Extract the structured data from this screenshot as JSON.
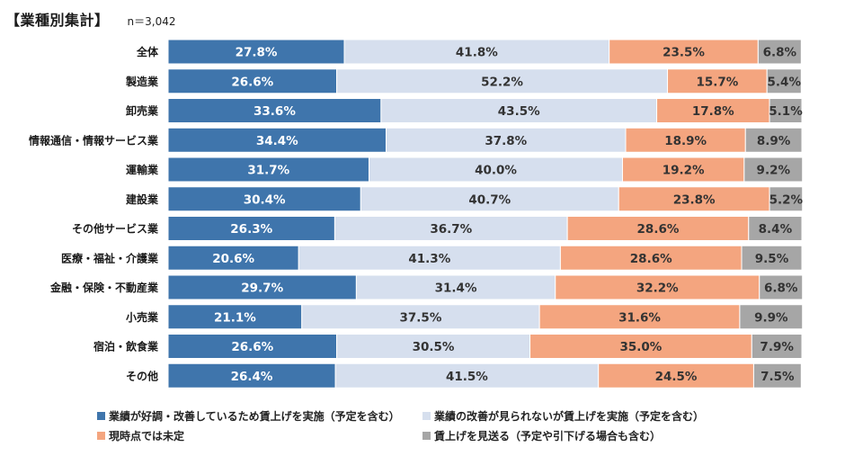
{
  "header": {
    "title": "【業種別集計】",
    "n": "n＝3,042"
  },
  "colors": {
    "s1": "#3f75ac",
    "s2": "#d6dfee",
    "s3": "#f4a57f",
    "s4": "#a6a6a6"
  },
  "chart_data": {
    "type": "bar",
    "orientation": "horizontal",
    "stacked": true,
    "percent": true,
    "xlim": [
      0,
      100
    ],
    "categories": [
      "全体",
      "製造業",
      "卸売業",
      "情報通信・情報サービス業",
      "運輸業",
      "建設業",
      "その他サービス業",
      "医療・福祉・介護業",
      "金融・保険・不動産業",
      "小売業",
      "宿泊・飲食業",
      "その他"
    ],
    "series": [
      {
        "name": "業績が好調・改善しているため賃上げを実施（予定を含む）",
        "values": [
          27.8,
          26.6,
          33.6,
          34.4,
          31.7,
          30.4,
          26.3,
          20.6,
          29.7,
          21.1,
          26.6,
          26.4
        ]
      },
      {
        "name": "業績の改善が見られないが賃上げを実施（予定を含む）",
        "values": [
          41.8,
          52.2,
          43.5,
          37.8,
          40.0,
          40.7,
          36.7,
          41.3,
          31.4,
          37.5,
          30.5,
          41.5
        ]
      },
      {
        "name": "現時点では未定",
        "values": [
          23.5,
          15.7,
          17.8,
          18.9,
          19.2,
          23.8,
          28.6,
          28.6,
          32.2,
          31.6,
          35.0,
          24.5
        ]
      },
      {
        "name": "賃上げを見送る（予定や引下げる場合も含む）",
        "values": [
          6.8,
          5.4,
          5.1,
          8.9,
          9.2,
          5.2,
          8.4,
          9.5,
          6.8,
          9.9,
          7.9,
          7.5
        ]
      }
    ]
  }
}
